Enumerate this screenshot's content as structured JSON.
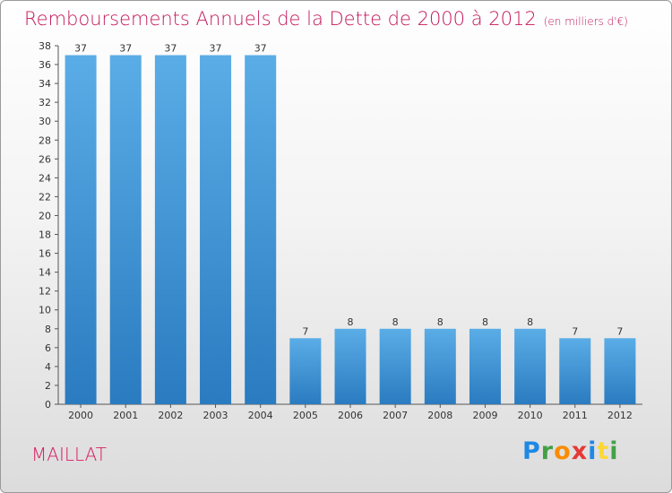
{
  "header": {
    "title": "Remboursements Annuels de la Dette de 2000 à 2012",
    "unit": "(en milliers d'€)"
  },
  "footer": {
    "commune": "MAILLAT",
    "brand_letters": [
      {
        "char": "P",
        "color": "#1e88e5"
      },
      {
        "char": "r",
        "color": "#43a047"
      },
      {
        "char": "o",
        "color": "#fb8c00"
      },
      {
        "char": "x",
        "color": "#e53935"
      },
      {
        "char": "i",
        "color": "#1e88e5"
      },
      {
        "char": "t",
        "color": "#fdd835"
      },
      {
        "char": "i",
        "color": "#43a047"
      }
    ]
  },
  "colors": {
    "title": "#c2185b",
    "bar_top": "#5aade6",
    "bar_bottom": "#2a7bc0",
    "axis": "#555555"
  },
  "chart_data": {
    "type": "bar",
    "title": "Remboursements Annuels de la Dette de 2000 à 2012",
    "categories": [
      "2000",
      "2001",
      "2002",
      "2003",
      "2004",
      "2005",
      "2006",
      "2007",
      "2008",
      "2009",
      "2010",
      "2011",
      "2012"
    ],
    "values": [
      37,
      37,
      37,
      37,
      37,
      7,
      8,
      8,
      8,
      8,
      8,
      7,
      7
    ],
    "ylim": [
      0,
      38
    ],
    "ytick_step": 2,
    "grid": false,
    "data_labels": true
  }
}
